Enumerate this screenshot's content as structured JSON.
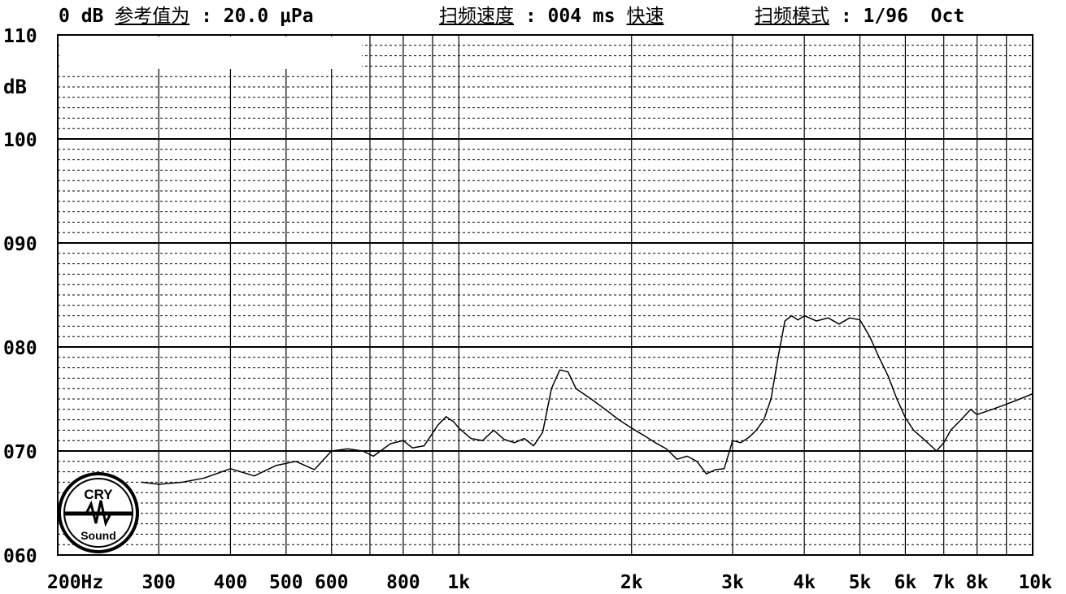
{
  "header": {
    "ref_prefix": "0 dB ",
    "ref_label": "参考值为",
    "ref_value": " : 20.0 μPa",
    "sweep_speed_label": "扫频速度",
    "sweep_speed_value": " : 004 ms ",
    "sweep_speed_mode": "快速",
    "sweep_mode_label": "扫频模式",
    "sweep_mode_value": " : 1/96  Oct"
  },
  "logo": {
    "top": "CRY",
    "bottom": "Sound"
  },
  "chart_data": {
    "type": "line",
    "x_scale": "log",
    "xlim": [
      200,
      10000
    ],
    "ylim": [
      60,
      110
    ],
    "yunit": "dB",
    "y_ticks": [
      {
        "value": 110,
        "label": "110"
      },
      {
        "value": 100,
        "label": "100"
      },
      {
        "value": 90,
        "label": "090"
      },
      {
        "value": 80,
        "label": "080"
      },
      {
        "value": 70,
        "label": "070"
      },
      {
        "value": 60,
        "label": "060"
      }
    ],
    "x_ticks": [
      {
        "value": 200,
        "label": "200Hz"
      },
      {
        "value": 300,
        "label": "300"
      },
      {
        "value": 400,
        "label": "400"
      },
      {
        "value": 500,
        "label": "500"
      },
      {
        "value": 600,
        "label": "600"
      },
      {
        "value": 800,
        "label": "800"
      },
      {
        "value": 1000,
        "label": "1k"
      },
      {
        "value": 2000,
        "label": "2k"
      },
      {
        "value": 3000,
        "label": "3k"
      },
      {
        "value": 4000,
        "label": "4k"
      },
      {
        "value": 5000,
        "label": "5k"
      },
      {
        "value": 6000,
        "label": "6k"
      },
      {
        "value": 7000,
        "label": "7k"
      },
      {
        "value": 8000,
        "label": "8k"
      },
      {
        "value": 10000,
        "label": "10k"
      }
    ],
    "grid": true,
    "series": [
      {
        "color": "#000000",
        "x": [
          280,
          300,
          330,
          360,
          400,
          440,
          480,
          520,
          560,
          600,
          640,
          680,
          710,
          760,
          800,
          830,
          870,
          920,
          950,
          980,
          1000,
          1050,
          1100,
          1150,
          1200,
          1250,
          1300,
          1350,
          1400,
          1450,
          1500,
          1550,
          1600,
          1700,
          1800,
          1900,
          2000,
          2100,
          2200,
          2300,
          2400,
          2500,
          2600,
          2700,
          2800,
          2900,
          3000,
          3100,
          3200,
          3300,
          3400,
          3500,
          3600,
          3700,
          3800,
          3900,
          4000,
          4200,
          4400,
          4600,
          4800,
          5000,
          5200,
          5400,
          5600,
          5800,
          6000,
          6200,
          6500,
          6800,
          7000,
          7200,
          7500,
          7800,
          8000,
          8500,
          9000,
          9500,
          10000
        ],
        "y": [
          67.0,
          66.8,
          67.0,
          67.4,
          68.3,
          67.6,
          68.6,
          69.0,
          68.2,
          70.0,
          70.2,
          70.0,
          69.5,
          70.7,
          71.0,
          70.3,
          70.5,
          72.5,
          73.3,
          72.8,
          72.2,
          71.2,
          71.0,
          72.0,
          71.1,
          70.8,
          71.2,
          70.5,
          71.8,
          76.0,
          77.8,
          77.6,
          76.0,
          75.0,
          74.0,
          73.0,
          72.2,
          71.5,
          70.8,
          70.2,
          69.2,
          69.5,
          69.0,
          67.8,
          68.2,
          68.3,
          71.0,
          70.8,
          71.3,
          72.0,
          73.0,
          75.0,
          79.0,
          82.5,
          83.0,
          82.6,
          83.0,
          82.5,
          82.8,
          82.2,
          82.8,
          82.6,
          81.0,
          79.0,
          77.2,
          75.0,
          73.2,
          72.0,
          71.0,
          70.0,
          70.8,
          72.0,
          73.0,
          74.0,
          73.5,
          74.0,
          74.5,
          75.0,
          75.5
        ]
      }
    ]
  }
}
